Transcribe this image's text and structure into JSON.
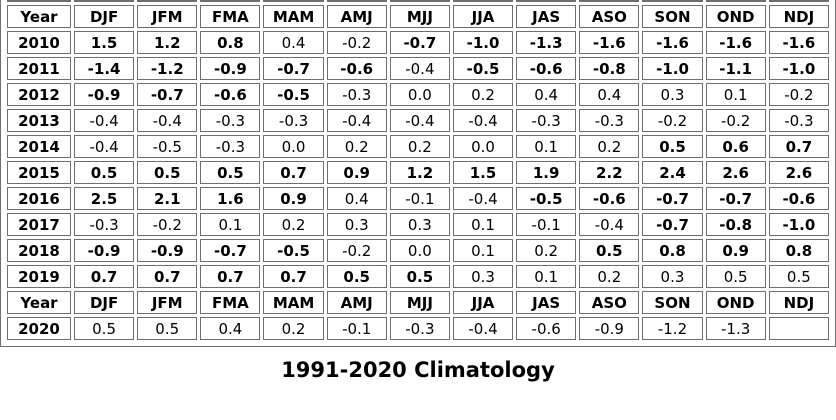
{
  "caption": {
    "text": "1991-2020 Climatology"
  },
  "colors": {
    "warm": "#cc2222",
    "cold": "#1414bb",
    "neutral": "#000000",
    "border": "#6e6e6e"
  },
  "table": {
    "columns": [
      "Year",
      "DJF",
      "JFM",
      "FMA",
      "MAM",
      "AMJ",
      "MJJ",
      "JJA",
      "JAS",
      "ASO",
      "SON",
      "OND",
      "NDJ"
    ],
    "rows": [
      {
        "type": "header"
      },
      {
        "type": "data",
        "year": "2010",
        "values": [
          "1.5",
          "1.2",
          "0.8",
          "0.4",
          "-0.2",
          "-0.7",
          "-1.0",
          "-1.3",
          "-1.6",
          "-1.6",
          "-1.6",
          "-1.6"
        ],
        "colors": [
          "warm",
          "warm",
          "warm",
          "neutral",
          "neutral",
          "cold",
          "cold",
          "cold",
          "cold",
          "cold",
          "cold",
          "cold"
        ]
      },
      {
        "type": "data",
        "year": "2011",
        "values": [
          "-1.4",
          "-1.2",
          "-0.9",
          "-0.7",
          "-0.6",
          "-0.4",
          "-0.5",
          "-0.6",
          "-0.8",
          "-1.0",
          "-1.1",
          "-1.0"
        ],
        "colors": [
          "cold",
          "cold",
          "cold",
          "cold",
          "cold",
          "neutral",
          "cold",
          "cold",
          "cold",
          "cold",
          "cold",
          "cold"
        ]
      },
      {
        "type": "data",
        "year": "2012",
        "values": [
          "-0.9",
          "-0.7",
          "-0.6",
          "-0.5",
          "-0.3",
          "0.0",
          "0.2",
          "0.4",
          "0.4",
          "0.3",
          "0.1",
          "-0.2"
        ],
        "colors": [
          "cold",
          "cold",
          "cold",
          "cold",
          "neutral",
          "neutral",
          "neutral",
          "neutral",
          "neutral",
          "neutral",
          "neutral",
          "neutral"
        ]
      },
      {
        "type": "data",
        "year": "2013",
        "values": [
          "-0.4",
          "-0.4",
          "-0.3",
          "-0.3",
          "-0.4",
          "-0.4",
          "-0.4",
          "-0.3",
          "-0.3",
          "-0.2",
          "-0.2",
          "-0.3"
        ],
        "colors": [
          "neutral",
          "neutral",
          "neutral",
          "neutral",
          "neutral",
          "neutral",
          "neutral",
          "neutral",
          "neutral",
          "neutral",
          "neutral",
          "neutral"
        ]
      },
      {
        "type": "data",
        "year": "2014",
        "values": [
          "-0.4",
          "-0.5",
          "-0.3",
          "0.0",
          "0.2",
          "0.2",
          "0.0",
          "0.1",
          "0.2",
          "0.5",
          "0.6",
          "0.7"
        ],
        "colors": [
          "neutral",
          "neutral",
          "neutral",
          "neutral",
          "neutral",
          "neutral",
          "neutral",
          "neutral",
          "neutral",
          "warm",
          "warm",
          "warm"
        ]
      },
      {
        "type": "data",
        "year": "2015",
        "values": [
          "0.5",
          "0.5",
          "0.5",
          "0.7",
          "0.9",
          "1.2",
          "1.5",
          "1.9",
          "2.2",
          "2.4",
          "2.6",
          "2.6"
        ],
        "colors": [
          "warm",
          "warm",
          "warm",
          "warm",
          "warm",
          "warm",
          "warm",
          "warm",
          "warm",
          "warm",
          "warm",
          "warm"
        ]
      },
      {
        "type": "data",
        "year": "2016",
        "values": [
          "2.5",
          "2.1",
          "1.6",
          "0.9",
          "0.4",
          "-0.1",
          "-0.4",
          "-0.5",
          "-0.6",
          "-0.7",
          "-0.7",
          "-0.6"
        ],
        "colors": [
          "warm",
          "warm",
          "warm",
          "warm",
          "neutral",
          "neutral",
          "neutral",
          "cold",
          "cold",
          "cold",
          "cold",
          "cold"
        ]
      },
      {
        "type": "data",
        "year": "2017",
        "values": [
          "-0.3",
          "-0.2",
          "0.1",
          "0.2",
          "0.3",
          "0.3",
          "0.1",
          "-0.1",
          "-0.4",
          "-0.7",
          "-0.8",
          "-1.0"
        ],
        "colors": [
          "neutral",
          "neutral",
          "neutral",
          "neutral",
          "neutral",
          "neutral",
          "neutral",
          "neutral",
          "neutral",
          "cold",
          "cold",
          "cold"
        ]
      },
      {
        "type": "data",
        "year": "2018",
        "values": [
          "-0.9",
          "-0.9",
          "-0.7",
          "-0.5",
          "-0.2",
          "0.0",
          "0.1",
          "0.2",
          "0.5",
          "0.8",
          "0.9",
          "0.8"
        ],
        "colors": [
          "cold",
          "cold",
          "cold",
          "cold",
          "neutral",
          "neutral",
          "neutral",
          "neutral",
          "warm",
          "warm",
          "warm",
          "warm"
        ]
      },
      {
        "type": "data",
        "year": "2019",
        "values": [
          "0.7",
          "0.7",
          "0.7",
          "0.7",
          "0.5",
          "0.5",
          "0.3",
          "0.1",
          "0.2",
          "0.3",
          "0.5",
          "0.5"
        ],
        "colors": [
          "warm",
          "warm",
          "warm",
          "warm",
          "warm",
          "warm",
          "neutral",
          "neutral",
          "neutral",
          "neutral",
          "neutral",
          "neutral"
        ]
      },
      {
        "type": "header"
      },
      {
        "type": "data",
        "year": "2020",
        "values": [
          "0.5",
          "0.5",
          "0.4",
          "0.2",
          "-0.1",
          "-0.3",
          "-0.4",
          "-0.6",
          "-0.9",
          "-1.2",
          "-1.3",
          ""
        ],
        "colors": [
          "neutral",
          "neutral",
          "neutral",
          "neutral",
          "neutral",
          "neutral",
          "neutral",
          "neutral",
          "neutral",
          "neutral",
          "neutral",
          "empty"
        ]
      }
    ]
  }
}
